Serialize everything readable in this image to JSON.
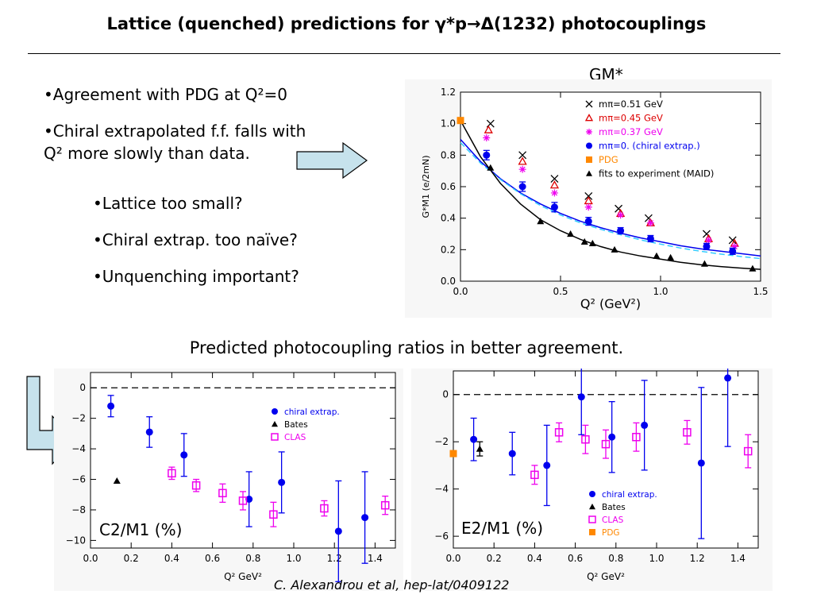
{
  "slide": {
    "title": "Lattice (quenched) predictions for γ*p→Δ(1232)  photocouplings",
    "bullets_top": [
      "•Agreement with PDG at Q²=0",
      "•Chiral extrapolated f.f. falls with",
      "Q² more slowly than data."
    ],
    "bullets_mid": [
      "•Lattice too small?",
      "•Chiral extrap. too naïve?",
      "•Unquenching important?"
    ],
    "gm_label": "GM*",
    "mid_caption": "Predicted photocoupling ratios in better agreement.",
    "c2_label": "C2/M1 (%)",
    "e2_label": "E2/M1 (%)",
    "credit": "C. Alexandrou et al, hep-lat/0409122"
  },
  "chart_data": [
    {
      "type": "scatter",
      "xlabel": "Q²  (GeV²)",
      "ylabel": "G*M1 (e/2mN)",
      "xlim": [
        0,
        1.5
      ],
      "ylim": [
        0,
        1.2
      ],
      "xticks": [
        "0.0",
        "0.5",
        "1.0",
        "1.5"
      ],
      "yticks": [
        "0.0",
        "0.2",
        "0.4",
        "0.6",
        "0.8",
        "1.0",
        "1.2"
      ],
      "series": [
        {
          "name": "mπ=0.51 GeV",
          "marker": "x",
          "color": "#000000",
          "x": [
            0.15,
            0.31,
            0.47,
            0.64,
            0.79,
            0.94,
            1.23,
            1.36
          ],
          "y": [
            1.0,
            0.8,
            0.65,
            0.54,
            0.46,
            0.4,
            0.3,
            0.26
          ]
        },
        {
          "name": "mπ=0.45 GeV",
          "marker": "open-triangle",
          "color": "#dd0000",
          "x": [
            0.14,
            0.31,
            0.47,
            0.64,
            0.8,
            0.95,
            1.24,
            1.37
          ],
          "y": [
            0.96,
            0.76,
            0.61,
            0.51,
            0.43,
            0.37,
            0.27,
            0.24
          ]
        },
        {
          "name": "mπ=0.37 GeV",
          "marker": "asterisk",
          "color": "#ee00ee",
          "x": [
            0.13,
            0.31,
            0.47,
            0.64,
            0.8,
            0.95,
            1.24,
            1.37
          ],
          "y": [
            0.91,
            0.71,
            0.56,
            0.47,
            0.42,
            0.37,
            0.26,
            0.22
          ]
        },
        {
          "name": "mπ=0. (chiral extrap.)",
          "marker": "dot",
          "color": "#0000ee",
          "x": [
            0.13,
            0.31,
            0.47,
            0.64,
            0.8,
            0.95,
            1.23,
            1.36
          ],
          "y": [
            0.8,
            0.6,
            0.47,
            0.38,
            0.32,
            0.27,
            0.22,
            0.19
          ],
          "err": [
            0.03,
            0.03,
            0.03,
            0.025,
            0.02,
            0.02,
            0.02,
            0.02
          ]
        },
        {
          "name": "PDG",
          "marker": "square",
          "color": "#ff8800",
          "x": [
            0.0
          ],
          "y": [
            1.02
          ]
        },
        {
          "name": "fits to experiment (MAID)",
          "marker": "triangle",
          "color": "#000000",
          "x": [
            0.15,
            0.4,
            0.55,
            0.62,
            0.66,
            0.77,
            0.98,
            1.05,
            1.22,
            1.46
          ],
          "y": [
            0.72,
            0.38,
            0.3,
            0.25,
            0.24,
            0.2,
            0.16,
            0.15,
            0.11,
            0.08
          ]
        }
      ],
      "curves": [
        {
          "name": "chiral fit",
          "color": "#0000ee",
          "dash": false,
          "x": [
            0,
            0.1,
            0.2,
            0.3,
            0.4,
            0.5,
            0.6,
            0.7,
            0.8,
            0.9,
            1.0,
            1.1,
            1.2,
            1.3,
            1.4,
            1.5
          ],
          "y": [
            0.9,
            0.76,
            0.65,
            0.56,
            0.49,
            0.43,
            0.38,
            0.34,
            0.305,
            0.275,
            0.25,
            0.225,
            0.205,
            0.19,
            0.175,
            0.16
          ]
        },
        {
          "name": "dipole",
          "color": "#33ccff",
          "dash": true,
          "x": [
            0,
            0.1,
            0.2,
            0.3,
            0.4,
            0.5,
            0.6,
            0.7,
            0.8,
            0.9,
            1.0,
            1.1,
            1.2,
            1.3,
            1.4,
            1.5
          ],
          "y": [
            0.88,
            0.75,
            0.645,
            0.555,
            0.48,
            0.42,
            0.37,
            0.33,
            0.295,
            0.262,
            0.235,
            0.21,
            0.19,
            0.172,
            0.157,
            0.143
          ]
        },
        {
          "name": "experiment fit",
          "color": "#000000",
          "dash": false,
          "x": [
            0,
            0.1,
            0.2,
            0.3,
            0.4,
            0.5,
            0.6,
            0.7,
            0.8,
            0.9,
            1.0,
            1.1,
            1.2,
            1.3,
            1.4,
            1.5
          ],
          "y": [
            1.02,
            0.79,
            0.62,
            0.49,
            0.39,
            0.32,
            0.265,
            0.22,
            0.185,
            0.16,
            0.14,
            0.12,
            0.105,
            0.093,
            0.083,
            0.075
          ]
        }
      ]
    },
    {
      "type": "scatter",
      "xlabel": "Q²  GeV²",
      "xlim": [
        0,
        1.5
      ],
      "ylim": [
        -10.5,
        1
      ],
      "xticks": [
        "0.0",
        "0.2",
        "0.4",
        "0.6",
        "0.8",
        "1.0",
        "1.2",
        "1.4"
      ],
      "yticks": [
        "0",
        "−2",
        "−4",
        "−6",
        "−8",
        "−10"
      ],
      "series": [
        {
          "name": "chiral extrap.",
          "marker": "dot",
          "color": "#0000ee",
          "x": [
            0.1,
            0.29,
            0.46,
            0.78,
            0.94,
            1.22,
            1.35
          ],
          "y": [
            -1.2,
            -2.9,
            -4.4,
            -7.3,
            -6.2,
            -9.4,
            -8.5
          ],
          "err": [
            0.7,
            1.0,
            1.4,
            1.8,
            2.0,
            3.3,
            3.0
          ]
        },
        {
          "name": "Bates",
          "marker": "triangle",
          "color": "#000000",
          "x": [
            0.13
          ],
          "y": [
            -6.1
          ]
        },
        {
          "name": "CLAS",
          "marker": "open-square",
          "color": "#ee00ee",
          "x": [
            0.4,
            0.52,
            0.65,
            0.75,
            0.9,
            1.15,
            1.45
          ],
          "y": [
            -5.6,
            -6.4,
            -6.9,
            -7.4,
            -8.3,
            -7.9,
            -7.7
          ],
          "err": [
            0.4,
            0.4,
            0.6,
            0.6,
            0.8,
            0.5,
            0.6
          ]
        }
      ]
    },
    {
      "type": "scatter",
      "xlabel": "Q²  GeV²",
      "xlim": [
        0,
        1.5
      ],
      "ylim": [
        -6.5,
        1
      ],
      "xticks": [
        "0.0",
        "0.2",
        "0.4",
        "0.6",
        "0.8",
        "1.0",
        "1.2",
        "1.4"
      ],
      "yticks": [
        "0",
        "−2",
        "−4",
        "−6"
      ],
      "series": [
        {
          "name": "chiral extrap.",
          "marker": "dot",
          "color": "#0000ee",
          "x": [
            0.1,
            0.29,
            0.46,
            0.63,
            0.78,
            0.94,
            1.22,
            1.35
          ],
          "y": [
            -1.9,
            -2.5,
            -3.0,
            -0.1,
            -1.8,
            -1.3,
            -2.9,
            0.7
          ],
          "err": [
            0.9,
            0.9,
            1.7,
            1.6,
            1.5,
            1.9,
            3.2,
            2.9
          ]
        },
        {
          "name": "Bates",
          "marker": "triangle",
          "color": "#000000",
          "x": [
            0.13
          ],
          "y": [
            -2.3
          ],
          "err": [
            0.3
          ]
        },
        {
          "name": "CLAS",
          "marker": "open-square",
          "color": "#ee00ee",
          "x": [
            0.4,
            0.52,
            0.65,
            0.75,
            0.9,
            1.15,
            1.45
          ],
          "y": [
            -3.4,
            -1.6,
            -1.9,
            -2.1,
            -1.8,
            -1.6,
            -2.4
          ],
          "err": [
            0.4,
            0.4,
            0.6,
            0.6,
            0.6,
            0.5,
            0.7
          ]
        },
        {
          "name": "PDG",
          "marker": "square",
          "color": "#ff8800",
          "x": [
            0.0
          ],
          "y": [
            -2.5
          ]
        }
      ]
    }
  ]
}
